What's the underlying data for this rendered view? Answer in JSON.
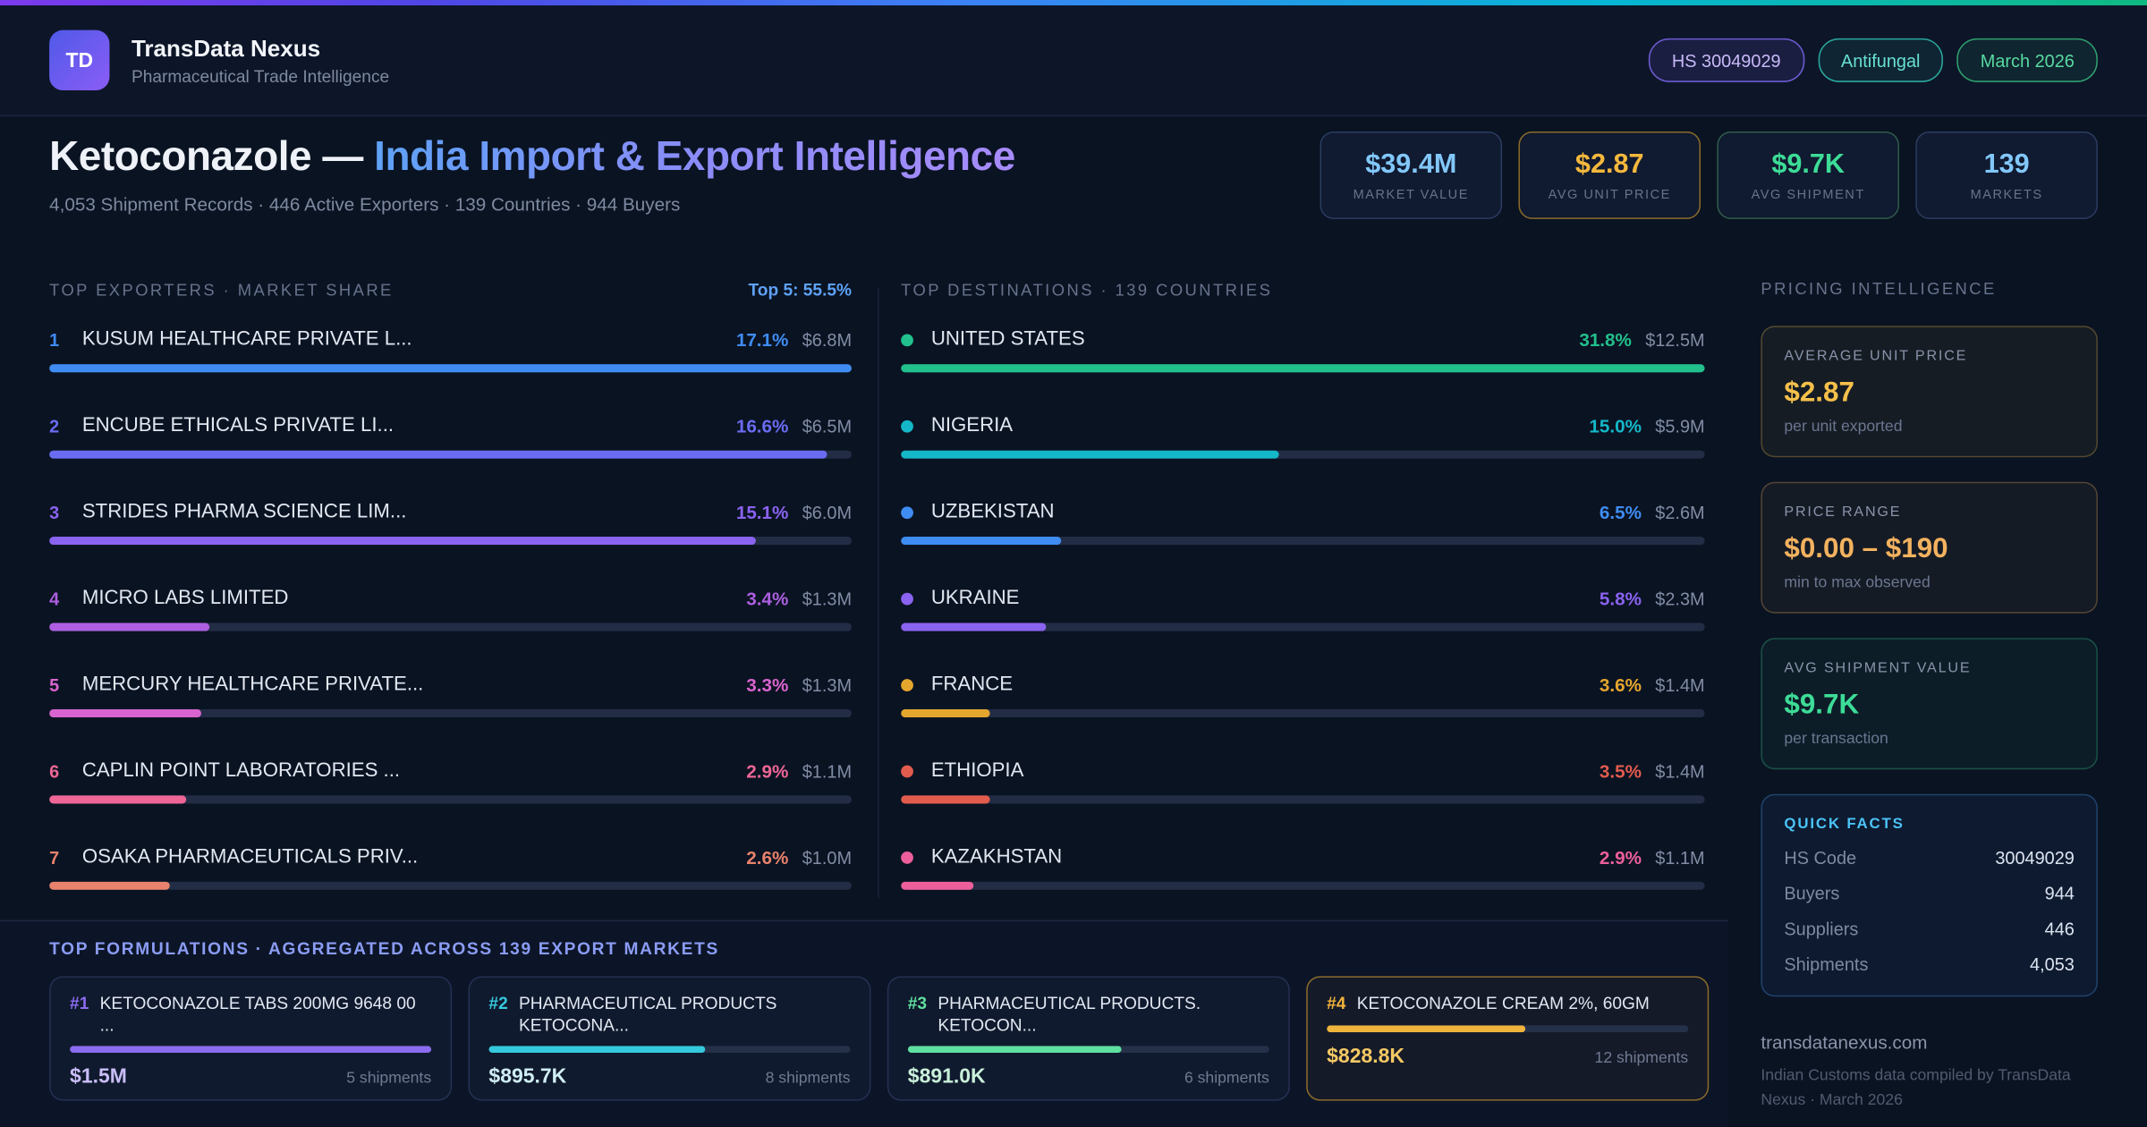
{
  "topbar": {
    "logo": "TD",
    "title": "TransData Nexus",
    "subtitle": "Pharmaceutical Trade Intelligence",
    "badges": [
      {
        "label": "HS 30049029",
        "color": "#c7b9f7",
        "border": "#6d5bd0",
        "bg": "rgba(124,92,246,0.12)"
      },
      {
        "label": "Antifungal",
        "color": "#67e0d3",
        "border": "#2aa79c",
        "bg": "rgba(45,212,191,0.08)"
      },
      {
        "label": "March 2026",
        "color": "#58d9a0",
        "border": "#2f9e6e",
        "bg": "rgba(52,211,153,0.08)"
      }
    ]
  },
  "header": {
    "title_plain": "Ketoconazole — ",
    "title_gradient": "India Import & Export Intelligence",
    "subtitle": "4,053 Shipment Records · 446 Active Exporters · 139 Countries · 944 Buyers",
    "stats": [
      {
        "value": "$39.4M",
        "label": "MARKET VALUE",
        "color": "#82c7fa",
        "border": "#2b3c60"
      },
      {
        "value": "$2.87",
        "label": "AVG UNIT PRICE",
        "color": "#f5b83d",
        "border": "#8a6b2a"
      },
      {
        "value": "$9.7K",
        "label": "AVG SHIPMENT",
        "color": "#3ddc97",
        "border": "#2e5c4a"
      },
      {
        "value": "139",
        "label": "MARKETS",
        "color": "#82c7fa",
        "border": "#2b3c60"
      }
    ]
  },
  "exporters": {
    "heading": "TOP EXPORTERS · MARKET SHARE",
    "summary": "Top 5: 55.5%",
    "items": [
      {
        "rank": "1",
        "name": "KUSUM HEALTHCARE PRIVATE L...",
        "pct": "17.1%",
        "value": "$6.8M",
        "color": "#3f8cf2",
        "bar_width": "100%"
      },
      {
        "rank": "2",
        "name": "ENCUBE ETHICALS PRIVATE LI...",
        "pct": "16.6%",
        "value": "$6.5M",
        "color": "#6a6cf2",
        "bar_width": "97%"
      },
      {
        "rank": "3",
        "name": "STRIDES PHARMA SCIENCE LIM...",
        "pct": "15.1%",
        "value": "$6.0M",
        "color": "#8a63f0",
        "bar_width": "88%"
      },
      {
        "rank": "4",
        "name": "MICRO LABS LIMITED",
        "pct": "3.4%",
        "value": "$1.3M",
        "color": "#ad5fe0",
        "bar_width": "20%"
      },
      {
        "rank": "5",
        "name": "MERCURY HEALTHCARE PRIVATE...",
        "pct": "3.3%",
        "value": "$1.3M",
        "color": "#d964cf",
        "bar_width": "19%"
      },
      {
        "rank": "6",
        "name": "CAPLIN POINT LABORATORIES ...",
        "pct": "2.9%",
        "value": "$1.1M",
        "color": "#ee6696",
        "bar_width": "17%"
      },
      {
        "rank": "7",
        "name": "OSAKA PHARMACEUTICALS PRIV...",
        "pct": "2.6%",
        "value": "$1.0M",
        "color": "#e8826c",
        "bar_width": "15%"
      }
    ]
  },
  "destinations": {
    "heading": "TOP DESTINATIONS · 139 COUNTRIES",
    "items": [
      {
        "name": "UNITED STATES",
        "pct": "31.8%",
        "value": "$12.5M",
        "color": "#22c08d",
        "bar_width": "100%"
      },
      {
        "name": "NIGERIA",
        "pct": "15.0%",
        "value": "$5.9M",
        "color": "#14b8c9",
        "bar_width": "47%"
      },
      {
        "name": "UZBEKISTAN",
        "pct": "6.5%",
        "value": "$2.6M",
        "color": "#3f8cf2",
        "bar_width": "20%"
      },
      {
        "name": "UKRAINE",
        "pct": "5.8%",
        "value": "$2.3M",
        "color": "#8a63f0",
        "bar_width": "18%"
      },
      {
        "name": "FRANCE",
        "pct": "3.6%",
        "value": "$1.4M",
        "color": "#e5a62e",
        "bar_width": "11%"
      },
      {
        "name": "ETHIOPIA",
        "pct": "3.5%",
        "value": "$1.4M",
        "color": "#e25c4e",
        "bar_width": "11%"
      },
      {
        "name": "KAZAKHSTAN",
        "pct": "2.9%",
        "value": "$1.1M",
        "color": "#ec5f9b",
        "bar_width": "9%"
      }
    ]
  },
  "pricing": {
    "heading": "PRICING INTELLIGENCE",
    "cards": [
      {
        "label": "AVERAGE UNIT PRICE",
        "value": "$2.87",
        "sub": "per unit exported",
        "color": "#f5c04a",
        "border": "rgba(245,192,74,0.28)",
        "bg": "rgba(245,192,74,0.05)"
      },
      {
        "label": "PRICE RANGE",
        "value": "$0.00 – $190",
        "sub": "min to max observed",
        "color": "#f3b25f",
        "border": "rgba(243,178,95,0.28)",
        "bg": "rgba(243,178,95,0.05)"
      },
      {
        "label": "AVG SHIPMENT VALUE",
        "value": "$9.7K",
        "sub": "per transaction",
        "color": "#3ddc97",
        "border": "rgba(61,220,151,0.28)",
        "bg": "rgba(61,220,151,0.05)"
      }
    ],
    "quick_facts": {
      "heading": "QUICK FACTS",
      "rows": [
        {
          "label": "HS Code",
          "value": "30049029"
        },
        {
          "label": "Buyers",
          "value": "944"
        },
        {
          "label": "Suppliers",
          "value": "446"
        },
        {
          "label": "Shipments",
          "value": "4,053"
        }
      ]
    },
    "site": "transdatanexus.com",
    "footnote": "Indian Customs data compiled by TransData Nexus · March 2026"
  },
  "formulations": {
    "heading": "TOP FORMULATIONS · AGGREGATED ACROSS 139 EXPORT MARKETS",
    "items": [
      {
        "rank": "#1",
        "name": "KETOCONAZOLE TABS 200MG 9648 00 ...",
        "value": "$1.5M",
        "shipments": "5 shipments",
        "color": "#8b6cf0",
        "value_color": "#c9bdf7",
        "bar_width": "100%",
        "border": "#243052",
        "bg": "#101a2e"
      },
      {
        "rank": "#2",
        "name": "PHARMACEUTICAL PRODUCTS KETOCONA...",
        "value": "$895.7K",
        "shipments": "8 shipments",
        "color": "#35c9dd",
        "value_color": "#cfeef4",
        "bar_width": "60%",
        "border": "#243052",
        "bg": "#101a2e"
      },
      {
        "rank": "#3",
        "name": "PHARMACEUTICAL PRODUCTS. KETOCON...",
        "value": "$891.0K",
        "shipments": "6 shipments",
        "color": "#5fe0a0",
        "value_color": "#c9f0d9",
        "bar_width": "59%",
        "border": "#243052",
        "bg": "#101a2e"
      },
      {
        "rank": "#4",
        "name": "KETOCONAZOLE CREAM 2%, 60GM",
        "value": "$828.8K",
        "shipments": "12 shipments",
        "color": "#f0b43c",
        "value_color": "#f5c963",
        "bar_width": "55%",
        "border": "#8a6b2a",
        "bg": "#151a29"
      }
    ]
  }
}
